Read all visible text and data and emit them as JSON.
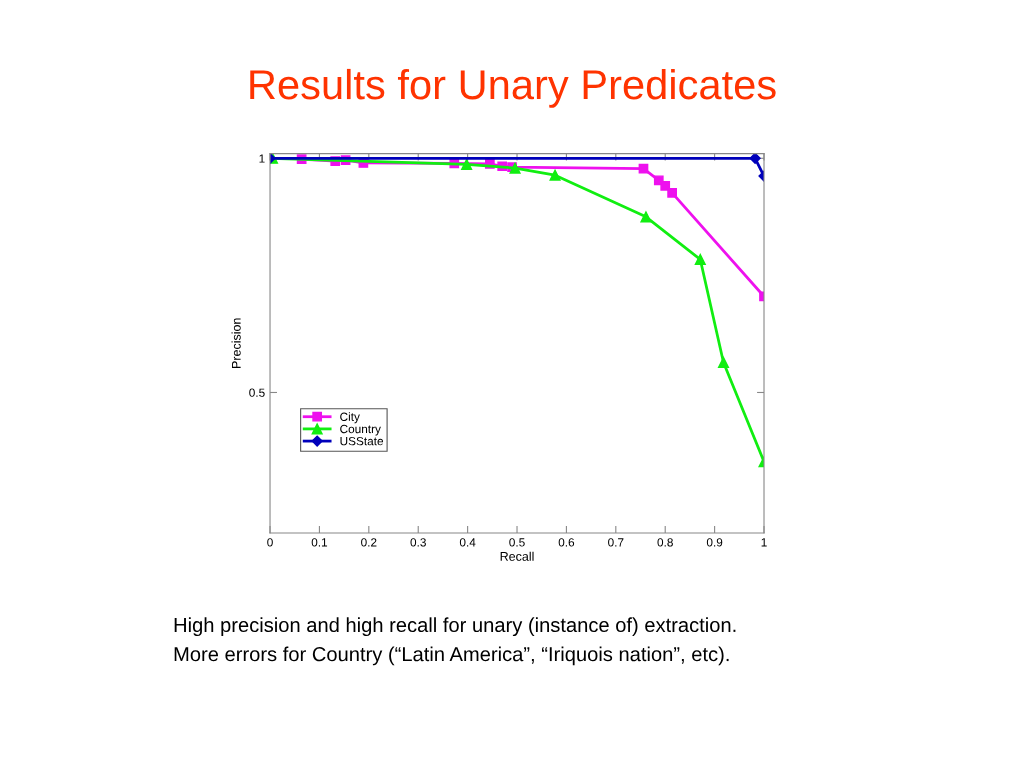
{
  "chart_data": {
    "type": "line",
    "title": "Results for Unary Predicates",
    "xlabel": "Recall",
    "ylabel": "Precision",
    "xlim": [
      0,
      1
    ],
    "ylim": [
      0.2,
      1.01
    ],
    "xticks": [
      0,
      0.1,
      0.2,
      0.3,
      0.4,
      0.5,
      0.6,
      0.7,
      0.8,
      0.9,
      1
    ],
    "yticks": [
      0.5,
      1
    ],
    "grid": false,
    "legend": "bottom left",
    "line_style": "solid",
    "series": [
      {
        "name": "City",
        "color": "#ee11ee",
        "marker": "square",
        "x": [
          0.064,
          0.132,
          0.153,
          0.189,
          0.373,
          0.445,
          0.47,
          0.49,
          0.756,
          0.787,
          0.8,
          0.814,
          1.0
        ],
        "values": [
          0.998,
          0.994,
          0.996,
          0.99,
          0.989,
          0.988,
          0.983,
          0.981,
          0.978,
          0.953,
          0.941,
          0.926,
          0.705
        ]
      },
      {
        "name": "Country",
        "color": "#11ee11",
        "marker": "triangle",
        "x": [
          0.005,
          0.398,
          0.496,
          0.577,
          0.761,
          0.871,
          0.918,
          1.0
        ],
        "values": [
          1.0,
          0.987,
          0.979,
          0.964,
          0.875,
          0.784,
          0.564,
          0.352
        ]
      },
      {
        "name": "USState",
        "color": "#0000bb",
        "marker": "diamond",
        "x": [
          0.0,
          0.982,
          1.0
        ],
        "values": [
          1.0,
          1.0,
          0.962
        ]
      }
    ],
    "annotations": [
      "High precision and high recall for unary (instance of) extraction.",
      "More errors for Country (“Latin America”, “Iriquois nation”, etc)."
    ]
  }
}
